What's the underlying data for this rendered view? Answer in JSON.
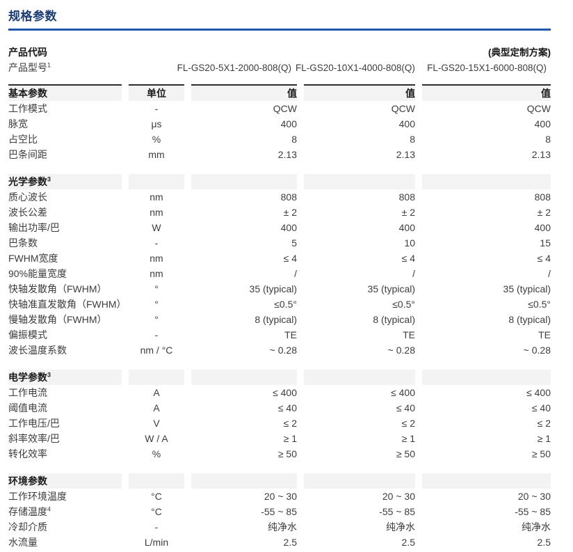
{
  "page": {
    "title": "规格参数"
  },
  "colors": {
    "title_text": "#1a3c77",
    "title_underline": "#1f5aa8",
    "section_header_bg": "#f3f3f3",
    "section_top_border": "#2d2d2d",
    "body_text": "#3d3d3d"
  },
  "product": {
    "code_label": "产品代码",
    "scheme_note": "(典型定制方案)",
    "model_label": "产品型号",
    "model_label_sup": "1",
    "models": [
      "FL-GS20-5X1-2000-808(Q)",
      "FL-GS20-10X1-4000-808(Q)",
      "FL-GS20-15X1-6000-808(Q)"
    ]
  },
  "table": {
    "sections": [
      {
        "title": "基本参数",
        "sup": "",
        "col_headers": [
          "单位",
          "值",
          "值",
          "值"
        ],
        "rows": [
          {
            "name": "工作模式",
            "sup": "",
            "unit": "-",
            "values": [
              "QCW",
              "QCW",
              "QCW"
            ]
          },
          {
            "name": "脉宽",
            "sup": "",
            "unit": "μs",
            "values": [
              "400",
              "400",
              "400"
            ]
          },
          {
            "name": "占空比",
            "sup": "",
            "unit": "%",
            "values": [
              "8",
              "8",
              "8"
            ]
          },
          {
            "name": "巴条间距",
            "sup": "",
            "unit": "mm",
            "values": [
              "2.13",
              "2.13",
              "2.13"
            ]
          }
        ]
      },
      {
        "title": "光学参数",
        "sup": "3",
        "col_headers": [
          "",
          "",
          "",
          ""
        ],
        "rows": [
          {
            "name": "质心波长",
            "sup": "",
            "unit": "nm",
            "values": [
              "808",
              "808",
              "808"
            ]
          },
          {
            "name": "波长公差",
            "sup": "",
            "unit": "nm",
            "values": [
              "± 2",
              "± 2",
              "± 2"
            ]
          },
          {
            "name": "输出功率/巴",
            "sup": "",
            "unit": "W",
            "values": [
              "400",
              "400",
              "400"
            ]
          },
          {
            "name": "巴条数",
            "sup": "",
            "unit": "-",
            "values": [
              "5",
              "10",
              "15"
            ]
          },
          {
            "name": "FWHM宽度",
            "sup": "",
            "unit": "nm",
            "values": [
              "≤ 4",
              "≤ 4",
              "≤ 4"
            ]
          },
          {
            "name": "90%能量宽度",
            "sup": "",
            "unit": "nm",
            "values": [
              "/",
              "/",
              "/"
            ]
          },
          {
            "name": "快轴发散角（FWHM）",
            "sup": "",
            "unit": "°",
            "values": [
              "35 (typical)",
              "35 (typical)",
              "35 (typical)"
            ]
          },
          {
            "name": "快轴准直发散角（FWHM）",
            "sup": "",
            "unit": "°",
            "values": [
              "≤0.5°",
              "≤0.5°",
              "≤0.5°"
            ]
          },
          {
            "name": "慢轴发散角（FWHM）",
            "sup": "",
            "unit": "°",
            "values": [
              "8 (typical)",
              "8 (typical)",
              "8 (typical)"
            ]
          },
          {
            "name": "偏振模式",
            "sup": "",
            "unit": "-",
            "values": [
              "TE",
              "TE",
              "TE"
            ]
          },
          {
            "name": "波长温度系数",
            "sup": "",
            "unit": "nm / °C",
            "values": [
              "~ 0.28",
              "~ 0.28",
              "~ 0.28"
            ]
          }
        ]
      },
      {
        "title": "电学参数",
        "sup": "3",
        "col_headers": [
          "",
          "",
          "",
          ""
        ],
        "rows": [
          {
            "name": "工作电流",
            "sup": "",
            "unit": "A",
            "values": [
              "≤ 400",
              "≤ 400",
              "≤ 400"
            ]
          },
          {
            "name": "阈值电流",
            "sup": "",
            "unit": "A",
            "values": [
              "≤ 40",
              "≤ 40",
              "≤ 40"
            ]
          },
          {
            "name": "工作电压/巴",
            "sup": "",
            "unit": "V",
            "values": [
              "≤ 2",
              "≤ 2",
              "≤ 2"
            ]
          },
          {
            "name": "斜率效率/巴",
            "sup": "",
            "unit": "W / A",
            "values": [
              "≥ 1",
              "≥ 1",
              "≥ 1"
            ]
          },
          {
            "name": "转化效率",
            "sup": "",
            "unit": "%",
            "values": [
              "≥ 50",
              "≥ 50",
              "≥ 50"
            ]
          }
        ]
      },
      {
        "title": "环境参数",
        "sup": "",
        "col_headers": [
          "",
          "",
          "",
          ""
        ],
        "rows": [
          {
            "name": "工作环境温度",
            "sup": "",
            "unit": "°C",
            "values": [
              "20 ~ 30",
              "20 ~ 30",
              "20 ~ 30"
            ]
          },
          {
            "name": "存储温度",
            "sup": "4",
            "unit": "°C",
            "values": [
              "-55 ~ 85",
              "-55 ~ 85",
              "-55 ~ 85"
            ]
          },
          {
            "name": "冷却介质",
            "sup": "",
            "unit": "-",
            "values": [
              "纯净水",
              "纯净水",
              "纯净水"
            ]
          },
          {
            "name": "水流量",
            "sup": "",
            "unit": "L/min",
            "values": [
              "2.5",
              "2.5",
              "2.5"
            ]
          }
        ]
      }
    ]
  }
}
